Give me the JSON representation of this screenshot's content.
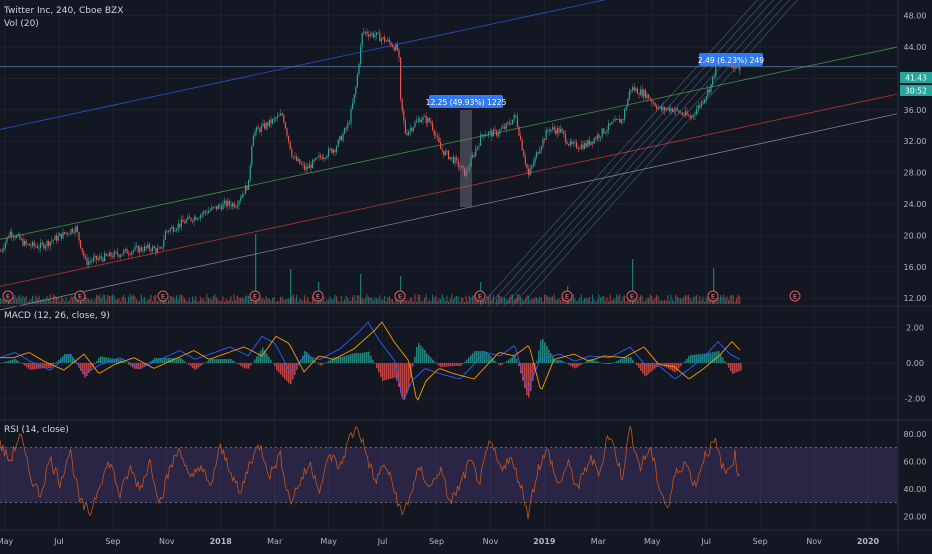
{
  "header": {
    "symbol_title": "Twitter Inc, 240, Cboe BZX",
    "volume_label": "Vol (20)",
    "macd_label": "MACD (12, 26, close, 9)",
    "rsi_label": "RSI (14, close)"
  },
  "colors": {
    "background": "#131722",
    "grid": "#1e222d",
    "up": "#26a69a",
    "down": "#ef5350",
    "channel_blue": "#2962ff",
    "channel_green": "#4caf50",
    "channel_red": "#e53935",
    "fib_lines": "#5d8bb8",
    "rsi_line": "#c4571e",
    "rsi_band": "#7e57c2",
    "macd_line": "#2962ff",
    "signal_line": "#ff9800",
    "label_bg": "#3179f5",
    "price_tag": "#26a69a"
  },
  "markers": {
    "price_current": "41.43",
    "countdown": "30:52",
    "earnings_label": "E",
    "measure_1": "12.25 (49.93%) 1225",
    "measure_2": "2.49 (6.23%) 249"
  },
  "chart_data": [
    {
      "type": "candlestick",
      "title": "Twitter Inc, 240, Cboe BZX",
      "x_ticks": [
        "May",
        "Jul",
        "Sep",
        "Nov",
        "2018",
        "Mar",
        "May",
        "Jul",
        "Sep",
        "Nov",
        "2019",
        "Mar",
        "May",
        "Jul",
        "Sep",
        "Nov",
        "2020"
      ],
      "y_ticks": [
        "48.00",
        "44.00",
        "40.00",
        "36.00",
        "32.00",
        "28.00",
        "24.00",
        "20.00",
        "16.00",
        "12.00"
      ],
      "ylim": [
        11,
        50
      ],
      "price_path": [
        [
          0,
          18.0
        ],
        [
          10,
          20.5
        ],
        [
          25,
          18.8
        ],
        [
          40,
          18.6
        ],
        [
          55,
          19.6
        ],
        [
          75,
          21.0
        ],
        [
          85,
          16.6
        ],
        [
          110,
          17.4
        ],
        [
          135,
          18.2
        ],
        [
          150,
          18.4
        ],
        [
          160,
          18.0
        ],
        [
          165,
          20.5
        ],
        [
          185,
          21.8
        ],
        [
          205,
          23.0
        ],
        [
          225,
          24.0
        ],
        [
          235,
          24.0
        ],
        [
          248,
          26.6
        ],
        [
          252,
          33.0
        ],
        [
          265,
          34.0
        ],
        [
          282,
          35.4
        ],
        [
          292,
          30.0
        ],
        [
          305,
          28.4
        ],
        [
          320,
          30.0
        ],
        [
          335,
          31.2
        ],
        [
          348,
          34.2
        ],
        [
          355,
          38.6
        ],
        [
          362,
          46.0
        ],
        [
          375,
          45.5
        ],
        [
          390,
          44.5
        ],
        [
          398,
          43.5
        ],
        [
          400,
          37.0
        ],
        [
          405,
          33.0
        ],
        [
          420,
          35.0
        ],
        [
          430,
          34.5
        ],
        [
          440,
          31.0
        ],
        [
          455,
          29.4
        ],
        [
          465,
          27.8
        ],
        [
          472,
          30.0
        ],
        [
          482,
          33.0
        ],
        [
          495,
          33.0
        ],
        [
          505,
          33.8
        ],
        [
          515,
          35.2
        ],
        [
          522,
          31.0
        ],
        [
          528,
          27.6
        ],
        [
          538,
          31.0
        ],
        [
          548,
          33.6
        ],
        [
          560,
          33.3
        ],
        [
          570,
          31.4
        ],
        [
          585,
          31.5
        ],
        [
          600,
          33.0
        ],
        [
          612,
          34.2
        ],
        [
          622,
          34.8
        ],
        [
          630,
          38.8
        ],
        [
          645,
          38.0
        ],
        [
          660,
          36.0
        ],
        [
          670,
          36.2
        ],
        [
          680,
          35.6
        ],
        [
          690,
          35.0
        ],
        [
          700,
          36.8
        ],
        [
          710,
          39.0
        ],
        [
          718,
          42.6
        ],
        [
          728,
          42.0
        ],
        [
          740,
          41.43
        ]
      ],
      "earnings_x": [
        8,
        80,
        163,
        255,
        318,
        400,
        480,
        567,
        632,
        713,
        795
      ],
      "volume_spikes": [
        [
          8,
          8
        ],
        [
          80,
          14
        ],
        [
          163,
          8
        ],
        [
          255,
          70
        ],
        [
          290,
          35
        ],
        [
          318,
          22
        ],
        [
          360,
          30
        ],
        [
          400,
          28
        ],
        [
          480,
          22
        ],
        [
          567,
          18
        ],
        [
          632,
          45
        ],
        [
          713,
          36
        ]
      ]
    },
    {
      "type": "line",
      "title": "MACD (12, 26, close, 9)",
      "y_ticks": [
        "2.00",
        "0.00",
        "-2.00"
      ],
      "ylim": [
        -3.2,
        3.2
      ],
      "macd_path": [
        [
          0,
          0.3
        ],
        [
          15,
          0.6
        ],
        [
          30,
          0.1
        ],
        [
          50,
          -0.4
        ],
        [
          70,
          0.5
        ],
        [
          85,
          -0.6
        ],
        [
          100,
          -0.1
        ],
        [
          120,
          0.3
        ],
        [
          140,
          -0.3
        ],
        [
          160,
          0.2
        ],
        [
          180,
          0.7
        ],
        [
          195,
          0.2
        ],
        [
          210,
          0.5
        ],
        [
          230,
          0.9
        ],
        [
          248,
          0.4
        ],
        [
          262,
          1.5
        ],
        [
          275,
          1.1
        ],
        [
          290,
          -0.5
        ],
        [
          305,
          0.4
        ],
        [
          320,
          0.2
        ],
        [
          340,
          0.8
        ],
        [
          360,
          1.8
        ],
        [
          368,
          2.3
        ],
        [
          380,
          1.2
        ],
        [
          395,
          0.1
        ],
        [
          403,
          -2.2
        ],
        [
          412,
          -1.0
        ],
        [
          425,
          -0.3
        ],
        [
          440,
          -0.6
        ],
        [
          460,
          -0.9
        ],
        [
          470,
          -0.3
        ],
        [
          485,
          0.6
        ],
        [
          500,
          0.4
        ],
        [
          515,
          1.0
        ],
        [
          527,
          -1.6
        ],
        [
          540,
          0.2
        ],
        [
          560,
          0.5
        ],
        [
          575,
          0.1
        ],
        [
          590,
          0.4
        ],
        [
          610,
          0.3
        ],
        [
          630,
          0.9
        ],
        [
          645,
          -0.1
        ],
        [
          660,
          -0.2
        ],
        [
          675,
          -0.9
        ],
        [
          690,
          -0.3
        ],
        [
          705,
          0.4
        ],
        [
          718,
          1.2
        ],
        [
          730,
          0.5
        ],
        [
          740,
          0.2
        ]
      ]
    },
    {
      "type": "line",
      "title": "RSI (14, close)",
      "y_ticks": [
        "80.00",
        "60.00",
        "40.00",
        "20.00"
      ],
      "ylim": [
        10,
        90
      ],
      "upper_band": 70,
      "lower_band": 30,
      "rsi_path": [
        [
          0,
          72
        ],
        [
          10,
          60
        ],
        [
          20,
          80
        ],
        [
          30,
          50
        ],
        [
          40,
          35
        ],
        [
          50,
          62
        ],
        [
          60,
          45
        ],
        [
          70,
          68
        ],
        [
          80,
          30
        ],
        [
          90,
          22
        ],
        [
          100,
          45
        ],
        [
          110,
          60
        ],
        [
          120,
          35
        ],
        [
          130,
          55
        ],
        [
          140,
          40
        ],
        [
          150,
          60
        ],
        [
          160,
          30
        ],
        [
          170,
          55
        ],
        [
          180,
          70
        ],
        [
          190,
          45
        ],
        [
          200,
          58
        ],
        [
          210,
          40
        ],
        [
          220,
          70
        ],
        [
          230,
          55
        ],
        [
          240,
          35
        ],
        [
          250,
          60
        ],
        [
          260,
          72
        ],
        [
          270,
          50
        ],
        [
          280,
          65
        ],
        [
          290,
          30
        ],
        [
          300,
          45
        ],
        [
          310,
          58
        ],
        [
          320,
          40
        ],
        [
          330,
          65
        ],
        [
          340,
          55
        ],
        [
          350,
          78
        ],
        [
          358,
          85
        ],
        [
          365,
          68
        ],
        [
          375,
          45
        ],
        [
          385,
          58
        ],
        [
          395,
          38
        ],
        [
          402,
          20
        ],
        [
          410,
          35
        ],
        [
          420,
          55
        ],
        [
          430,
          40
        ],
        [
          440,
          55
        ],
        [
          450,
          30
        ],
        [
          460,
          42
        ],
        [
          470,
          60
        ],
        [
          480,
          45
        ],
        [
          490,
          75
        ],
        [
          500,
          55
        ],
        [
          510,
          62
        ],
        [
          520,
          45
        ],
        [
          528,
          22
        ],
        [
          538,
          55
        ],
        [
          548,
          68
        ],
        [
          558,
          42
        ],
        [
          568,
          58
        ],
        [
          578,
          40
        ],
        [
          590,
          62
        ],
        [
          600,
          52
        ],
        [
          608,
          80
        ],
        [
          615,
          68
        ],
        [
          622,
          48
        ],
        [
          630,
          84
        ],
        [
          640,
          55
        ],
        [
          650,
          70
        ],
        [
          660,
          40
        ],
        [
          668,
          25
        ],
        [
          675,
          50
        ],
        [
          685,
          60
        ],
        [
          695,
          42
        ],
        [
          705,
          65
        ],
        [
          715,
          74
        ],
        [
          725,
          50
        ],
        [
          735,
          64
        ],
        [
          740,
          45
        ]
      ]
    }
  ]
}
